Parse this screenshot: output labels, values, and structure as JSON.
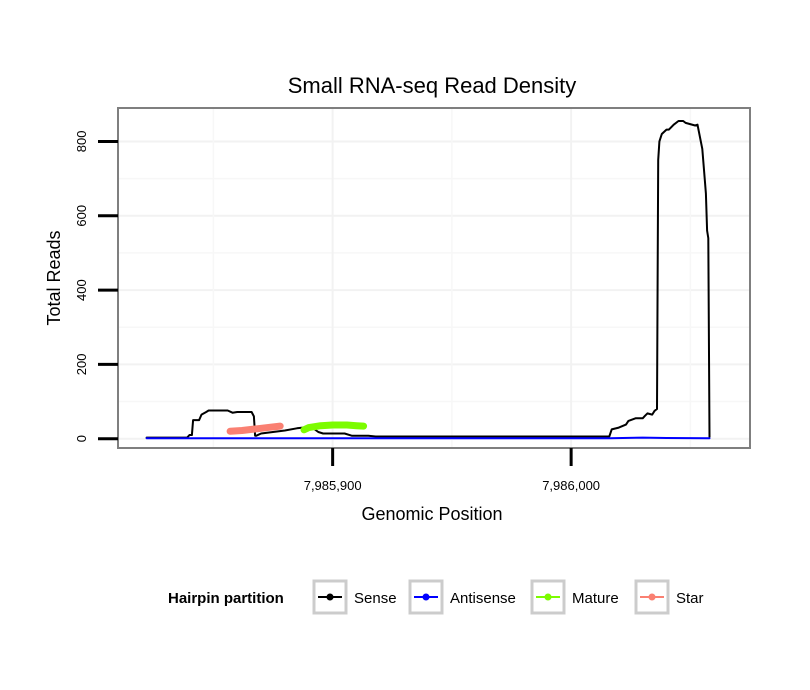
{
  "chart_data": {
    "type": "line",
    "title": "Small RNA-seq Read Density",
    "xlabel": "Genomic Position",
    "ylabel": "Total Reads",
    "xlim": [
      7985810,
      7986075
    ],
    "ylim": [
      -25,
      890
    ],
    "xticks": [
      7985900,
      7986000
    ],
    "xtick_labels": [
      "7,985,900",
      "7,986,000"
    ],
    "yticks": [
      0,
      200,
      400,
      600,
      800
    ],
    "ytick_labels": [
      "0",
      "200",
      "400",
      "600",
      "800"
    ],
    "grid": true,
    "legend": {
      "title": "Hairpin partition",
      "position": "bottom",
      "entries": [
        "Sense",
        "Antisense",
        "Mature",
        "Star"
      ]
    },
    "series": [
      {
        "name": "Sense",
        "color": "#000000",
        "x": [
          7985822,
          7985839,
          7985840,
          7985841,
          7985841.5,
          7985844,
          7985845,
          7985847,
          7985848,
          7985850,
          7985856,
          7985858,
          7985860,
          7985866,
          7985867,
          7985867.5,
          7985868,
          7985870,
          7985875,
          7985880,
          7985885,
          7985891,
          7985894,
          7985896,
          7985900,
          7985905,
          7985908,
          7985915,
          7985918,
          7985925,
          7985935,
          7985940,
          7985950,
          7985970,
          7985990,
          7986010,
          7986016,
          7986017,
          7986020,
          7986023,
          7986024,
          7986027,
          7986030,
          7986031,
          7986032,
          7986034,
          7986035,
          7986036,
          7986036.5,
          7986037,
          7986038,
          7986040,
          7986041,
          7986043,
          7986045,
          7986047,
          7986048,
          7986052,
          7986053,
          7986055,
          7986056,
          7986056.5,
          7986057,
          7986057.5,
          7986058
        ],
        "values": [
          3,
          3,
          10,
          10,
          50,
          50,
          65,
          72,
          76,
          76,
          76,
          70,
          72,
          72,
          60,
          8,
          8,
          14,
          18,
          22,
          28,
          32,
          18,
          14,
          14,
          14,
          8,
          8,
          6,
          6,
          6,
          6,
          6,
          6,
          6,
          6,
          6,
          25,
          30,
          38,
          48,
          55,
          55,
          62,
          68,
          65,
          75,
          80,
          750,
          800,
          820,
          832,
          832,
          845,
          855,
          855,
          850,
          843,
          845,
          780,
          700,
          660,
          560,
          540,
          5
        ]
      },
      {
        "name": "Antisense",
        "color": "#0000ff",
        "x": [
          7985822,
          7986016,
          7986030,
          7986040,
          7986058
        ],
        "values": [
          1,
          1,
          3,
          2,
          1
        ]
      },
      {
        "name": "Mature",
        "color": "#7cfc00",
        "x": [
          7985888,
          7985890,
          7985895,
          7985900,
          7985906,
          7985910,
          7985913
        ],
        "values": [
          24,
          30,
          35,
          37,
          37,
          35,
          34
        ]
      },
      {
        "name": "Star",
        "color": "#fa8072",
        "x": [
          7985857,
          7985862,
          7985866,
          7985870,
          7985874,
          7985878
        ],
        "values": [
          20,
          22,
          25,
          28,
          31,
          34
        ]
      }
    ]
  }
}
